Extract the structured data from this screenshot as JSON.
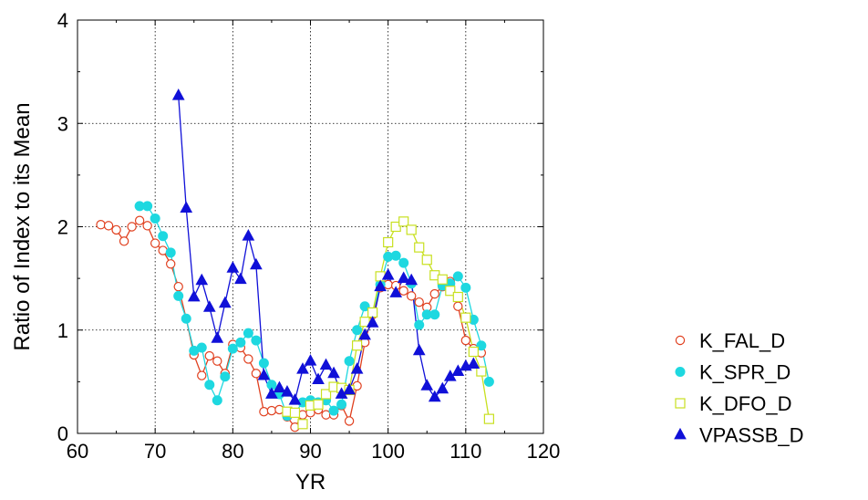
{
  "chart_data": {
    "type": "line",
    "xlabel": "YR",
    "ylabel": "Ratio of Index to its Mean",
    "xlim": [
      60,
      120
    ],
    "ylim": [
      0,
      4
    ],
    "xticks": [
      "60",
      "70",
      "80",
      "90",
      "100",
      "110",
      "120"
    ],
    "yticks": [
      "0",
      "1",
      "2",
      "3",
      "4"
    ],
    "grid": true,
    "legend_position": "right",
    "series": [
      {
        "name": "K_FAL_D",
        "color": "#e0401f",
        "marker": "open-circle",
        "x": [
          63,
          64,
          65,
          66,
          67,
          68,
          69,
          70,
          71,
          72,
          73,
          74,
          75,
          76,
          77,
          78,
          79,
          80,
          81,
          82,
          83,
          84,
          85,
          86,
          87,
          88,
          89,
          90,
          91,
          92,
          93,
          94,
          95,
          96,
          97,
          98,
          99,
          100,
          101,
          102,
          103,
          104,
          105,
          106,
          107,
          108,
          109,
          110,
          111,
          112
        ],
        "y": [
          2.02,
          2.01,
          1.97,
          1.86,
          2.0,
          2.06,
          2.01,
          1.84,
          1.77,
          1.64,
          1.42,
          1.11,
          0.76,
          0.56,
          0.75,
          0.7,
          0.58,
          0.86,
          0.83,
          0.72,
          0.58,
          0.21,
          0.22,
          0.23,
          0.16,
          0.06,
          0.18,
          0.2,
          0.23,
          0.18,
          0.18,
          0.27,
          0.12,
          0.46,
          0.88,
          1.15,
          1.41,
          1.44,
          1.43,
          1.38,
          1.33,
          1.27,
          1.22,
          1.35,
          1.42,
          1.47,
          1.23,
          0.9,
          0.82,
          0.78
        ]
      },
      {
        "name": "K_SPR_D",
        "color": "#1ed8e0",
        "marker": "filled-circle",
        "x": [
          68,
          69,
          70,
          71,
          72,
          73,
          74,
          75,
          76,
          77,
          78,
          79,
          80,
          81,
          82,
          83,
          84,
          85,
          86,
          87,
          88,
          89,
          90,
          91,
          92,
          93,
          94,
          95,
          96,
          97,
          98,
          99,
          100,
          101,
          102,
          103,
          104,
          105,
          106,
          107,
          108,
          109,
          110,
          111,
          112,
          113
        ],
        "y": [
          2.2,
          2.2,
          2.08,
          1.91,
          1.75,
          1.33,
          1.11,
          0.8,
          0.83,
          0.47,
          0.32,
          0.55,
          0.82,
          0.88,
          0.97,
          0.9,
          0.68,
          0.47,
          0.38,
          0.17,
          0.2,
          0.3,
          0.32,
          0.3,
          0.32,
          0.22,
          0.28,
          0.7,
          1.0,
          1.23,
          1.17,
          1.44,
          1.71,
          1.72,
          1.65,
          1.45,
          1.05,
          1.15,
          1.15,
          1.43,
          1.45,
          1.52,
          1.41,
          1.1,
          0.85,
          0.5
        ]
      },
      {
        "name": "K_DFO_D",
        "color": "#c8e020",
        "marker": "open-square",
        "x": [
          87,
          88,
          89,
          90,
          91,
          92,
          93,
          94,
          95,
          96,
          97,
          98,
          99,
          100,
          101,
          102,
          103,
          104,
          105,
          106,
          107,
          108,
          109,
          110,
          111,
          112,
          113
        ],
        "y": [
          0.21,
          0.2,
          0.09,
          0.27,
          0.28,
          0.38,
          0.45,
          0.44,
          0.42,
          0.85,
          1.08,
          1.17,
          1.52,
          1.85,
          2.0,
          2.05,
          1.97,
          1.8,
          1.68,
          1.53,
          1.49,
          1.38,
          1.32,
          1.12,
          0.79,
          0.6,
          0.14
        ]
      },
      {
        "name": "VPASSB_D",
        "color": "#1010d8",
        "marker": "filled-triangle",
        "x": [
          73,
          74,
          75,
          76,
          77,
          78,
          79,
          80,
          81,
          82,
          83,
          84,
          85,
          86,
          87,
          88,
          89,
          90,
          91,
          92,
          93,
          94,
          95,
          96,
          97,
          98,
          99,
          100,
          101,
          102,
          103,
          104,
          105,
          106,
          107,
          108,
          109,
          110,
          111
        ],
        "y": [
          3.27,
          2.18,
          1.32,
          1.48,
          1.22,
          0.92,
          1.26,
          1.6,
          1.49,
          1.91,
          1.63,
          0.56,
          0.38,
          0.44,
          0.4,
          0.32,
          0.62,
          0.7,
          0.52,
          0.66,
          0.58,
          0.38,
          0.42,
          0.62,
          0.95,
          1.07,
          1.42,
          1.53,
          1.36,
          1.5,
          1.48,
          0.8,
          0.46,
          0.35,
          0.43,
          0.55,
          0.6,
          0.65,
          0.67
        ]
      }
    ]
  }
}
